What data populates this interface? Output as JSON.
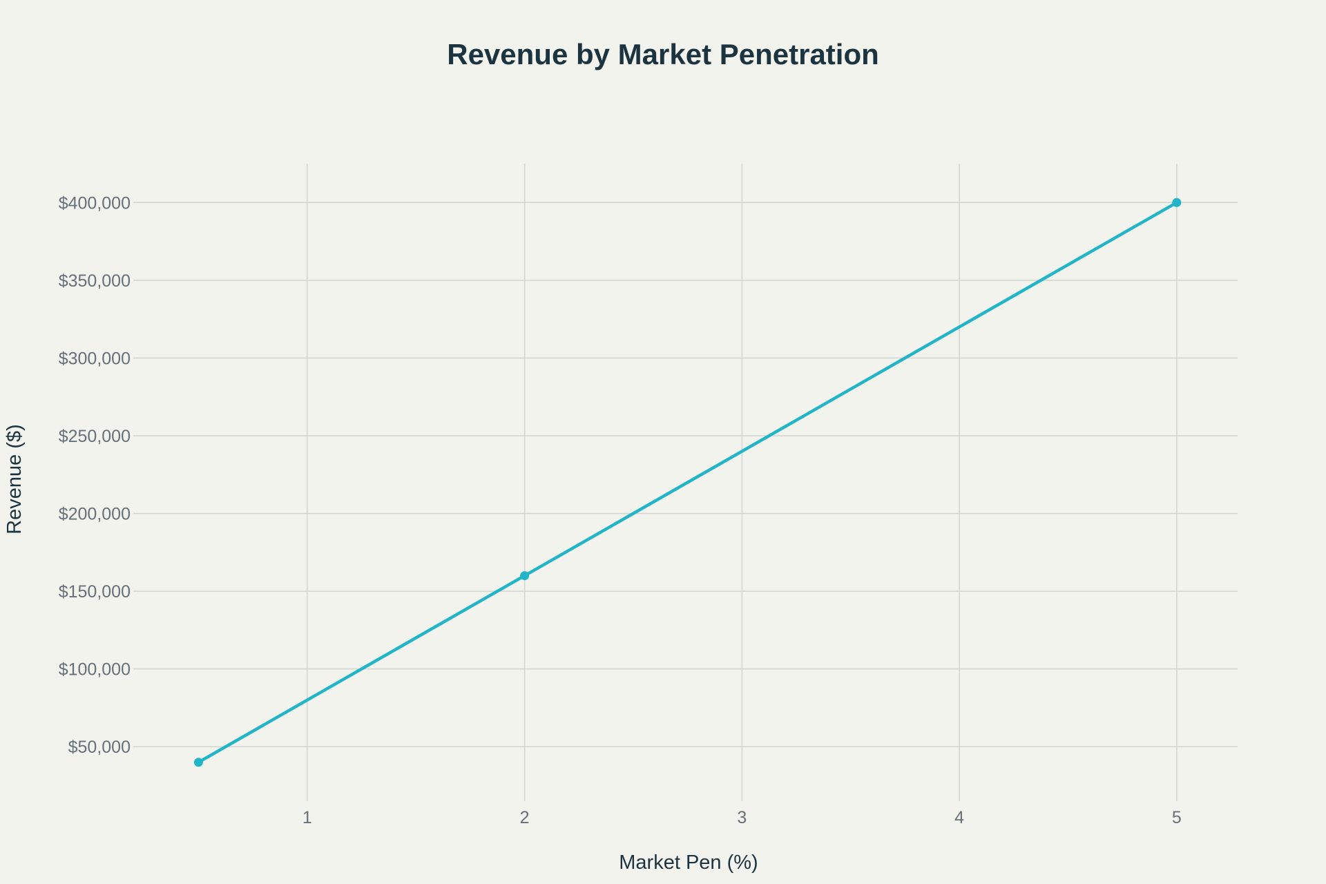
{
  "chart_data": {
    "type": "line",
    "title": "Revenue by Market Penetration",
    "xlabel": "Market Pen (%)",
    "ylabel": "Revenue ($)",
    "xlim": [
      0.2,
      5.28
    ],
    "ylim": [
      15000,
      425000
    ],
    "x_ticks": [
      1,
      2,
      3,
      4,
      5
    ],
    "x_tick_labels": [
      "1",
      "2",
      "3",
      "4",
      "5"
    ],
    "y_ticks": [
      50000,
      100000,
      150000,
      200000,
      250000,
      300000,
      350000,
      400000
    ],
    "y_tick_labels": [
      "$50,000",
      "$100,000",
      "$150,000",
      "$200,000",
      "$250,000",
      "$300,000",
      "$350,000",
      "$400,000"
    ],
    "grid": true,
    "legend": "none",
    "series": [
      {
        "color": "#22b5c8",
        "x": [
          0.5,
          2,
          5
        ],
        "y": [
          40000,
          160000,
          400000
        ]
      }
    ],
    "background_color": "#f3f3ee"
  }
}
